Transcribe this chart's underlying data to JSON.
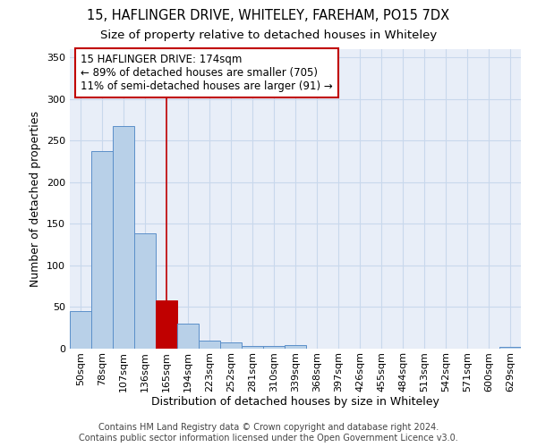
{
  "title_line1": "15, HAFLINGER DRIVE, WHITELEY, FAREHAM, PO15 7DX",
  "title_line2": "Size of property relative to detached houses in Whiteley",
  "xlabel": "Distribution of detached houses by size in Whiteley",
  "ylabel": "Number of detached properties",
  "categories": [
    "50sqm",
    "78sqm",
    "107sqm",
    "136sqm",
    "165sqm",
    "194sqm",
    "223sqm",
    "252sqm",
    "281sqm",
    "310sqm",
    "339sqm",
    "368sqm",
    "397sqm",
    "426sqm",
    "455sqm",
    "484sqm",
    "513sqm",
    "542sqm",
    "571sqm",
    "600sqm",
    "629sqm"
  ],
  "values": [
    45,
    237,
    268,
    139,
    58,
    30,
    10,
    7,
    3,
    3,
    4,
    0,
    0,
    0,
    0,
    0,
    0,
    0,
    0,
    0,
    2
  ],
  "bar_color": "#b8d0e8",
  "bar_edge_color": "#5b8fc9",
  "highlight_bar_index": 4,
  "highlight_bar_color": "#c00000",
  "highlight_bar_edge_color": "#c00000",
  "vline_color": "#c00000",
  "vline_x": 4.5,
  "annotation_text": "15 HAFLINGER DRIVE: 174sqm\n← 89% of detached houses are smaller (705)\n11% of semi-detached houses are larger (91) →",
  "annotation_box_edgecolor": "#c00000",
  "ylim": [
    0,
    360
  ],
  "yticks": [
    0,
    50,
    100,
    150,
    200,
    250,
    300,
    350
  ],
  "grid_color": "#c8d8ec",
  "bg_color": "#e8eef8",
  "footer_line1": "Contains HM Land Registry data © Crown copyright and database right 2024.",
  "footer_line2": "Contains public sector information licensed under the Open Government Licence v3.0.",
  "title_fontsize": 10.5,
  "subtitle_fontsize": 9.5,
  "annotation_fontsize": 8.5,
  "axis_label_fontsize": 9,
  "tick_fontsize": 8,
  "footer_fontsize": 7
}
